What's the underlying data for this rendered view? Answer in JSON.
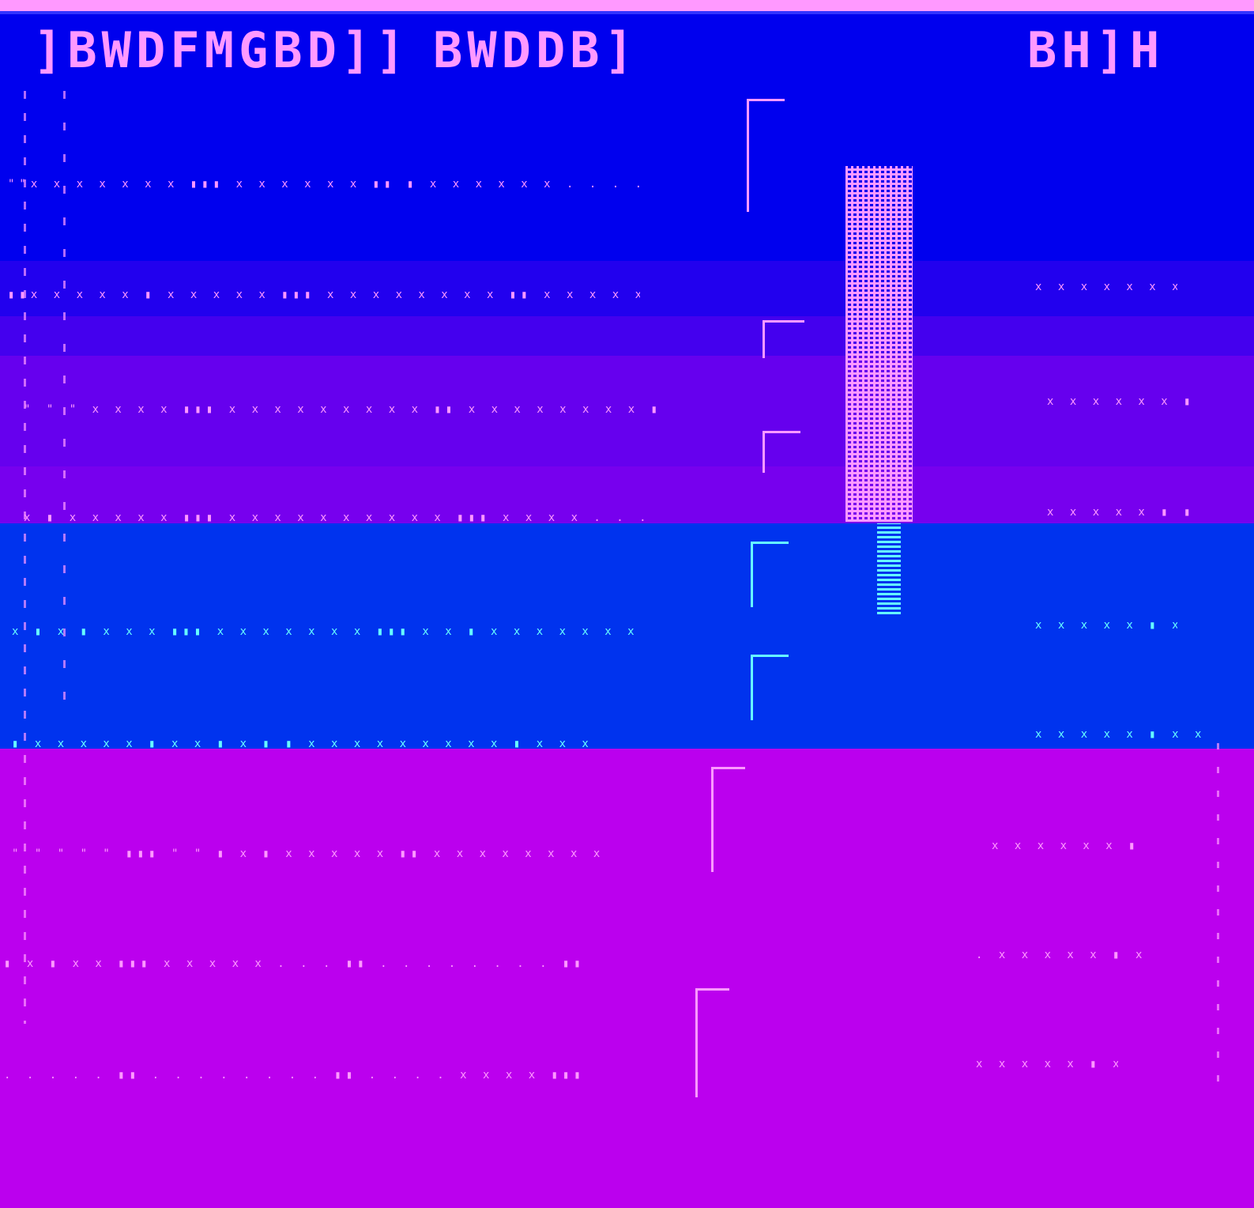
{
  "title_left": "]BWDFMGBD]]",
  "title_mid": "BWDDB]",
  "title_right": "BH]H",
  "colors": {
    "band1": "#0000ee",
    "band2": "#2200ee",
    "band3": "#4400ee",
    "band4": "#6600ee",
    "band5": "#7700ee",
    "band6": "#0033ee",
    "band7": "#bb00ee",
    "glyph_pink": "#ff99ff",
    "glyph_cyan": "#66ffff"
  },
  "rows": [
    {
      "text": "\"\"x x x x x x x ▮▮▮ x x x x x x ▮▮ ▮ x x x x x x . . . . . . . ."
    },
    {
      "text": "▮▮x x x x x ▮ x x x x x ▮▮▮ x x x x x x x x ▮▮ x x x x x x ▮ ▮ ▮ x"
    },
    {
      "text": "\" \" \" x x x x ▮▮▮ x x x x x x x x x ▮▮ x x x x x x x x ▮▮ x x"
    },
    {
      "text": "x ▮ x x x x x ▮▮▮ x x x x x x x x x x ▮▮▮ x x x x . . . ▮▮▮"
    },
    {
      "text": "x ▮ x ▮ x x x ▮▮▮ x x x x x x x ▮▮▮ x x ▮ x x x x x x x ▮ x x ▮"
    },
    {
      "text": "▮ x x x x x ▮ x x ▮ x ▮ ▮ x x x x x x x x x ▮ x x x"
    },
    {
      "text": "\" \" \" \" \" ▮▮▮ \" \" ▮ x ▮ x x x x x ▮▮ x x x x x x x x ▮▮ x"
    },
    {
      "text": "▮ x ▮ x x ▮▮▮ x x x x x . . . ▮▮ . . . . . . . . ▮▮ . ."
    },
    {
      "text": ". . . . . ▮▮ . . . . . . . . ▮▮ . . . . x x x x ▮▮▮"
    }
  ],
  "right_rows": [
    {
      "text": "x x x x x x x ▮"
    },
    {
      "text": "x x x x x x ▮▮"
    },
    {
      "text": "x x x x x ▮ ▮"
    },
    {
      "text": "x x x x x ▮ x x"
    },
    {
      "text": "x x x x x ▮ x x ▮"
    },
    {
      "text": "x x x x x x ▮ x"
    },
    {
      "text": ". x x x x x ▮ x"
    },
    {
      "text": "x x x x x ▮ x"
    }
  ]
}
